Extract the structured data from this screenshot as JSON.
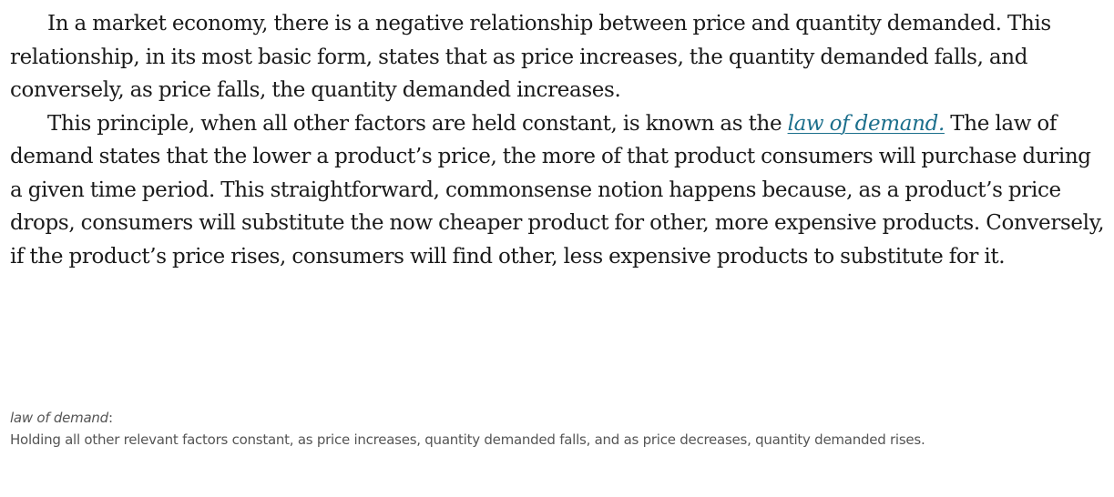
{
  "body": {
    "paragraph1": "In a market economy, there is a negative relationship between price and quantity demanded. This relationship, in its most basic form, states that as price increases, the quantity demanded falls, and conversely, as price falls, the quantity demanded increases.",
    "paragraph2_intro": "This principle, when all other factors are held constant, is known as the ",
    "paragraph2_link": "law of demand.",
    "paragraph2_rest": " The law of demand states that the lower a product’s price, the more of that product consumers will purchase during a given time period. This straightforward, commonsense notion happens because, as a product’s price drops, consumers will substitute the now cheaper product for other, more expensive products. Conversely, if the product’s price rises, consumers will find other, less expensive products to substitute for it."
  },
  "glossary": {
    "term": "law of demand",
    "separator": ":",
    "definition": "Holding all other relevant factors constant, as price increases, quantity demanded falls, and as price decreases, quantity demanded rises."
  },
  "colors": {
    "text": "#1a1a1a",
    "link": "#1c6f8c",
    "glossary_text": "#555555"
  }
}
